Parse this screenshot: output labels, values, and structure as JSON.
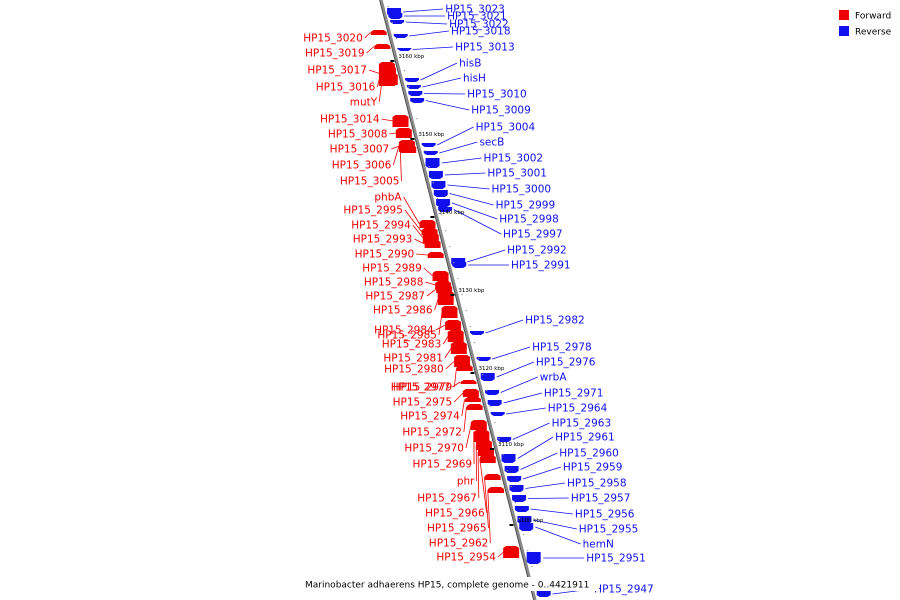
{
  "legend": {
    "forward_label": "Forward",
    "reverse_label": "Reverse",
    "forward_color": "#ee0000",
    "reverse_color": "#1111ee"
  },
  "caption": "Marinobacter adhaerens HP15, complete genome - 0..4421911",
  "ticks": [
    "3160 kbp",
    "3150 kbp",
    "3140 kbp",
    "3130 kbp",
    "3120 kbp",
    "3110 kbp",
    "3100 kbp"
  ],
  "reverse_genes": [
    "HP15_3023",
    "HP15_3022",
    "HP15_3021",
    "HP15_3018",
    "HP15_3013",
    "hisB",
    "hisH",
    "HP15_3010",
    "HP15_3009",
    "HP15_3004",
    "secB",
    "HP15_3002",
    "HP15_3001",
    "HP15_3000",
    "HP15_2999",
    "HP15_2998",
    "HP15_2997",
    "HP15_2992",
    "HP15_2991",
    "HP15_2982",
    "HP15_2978",
    "HP15_2976",
    "wrbA",
    "HP15_2971",
    "HP15_2964",
    "HP15_2963",
    "HP15_2961",
    "HP15_2960",
    "HP15_2959",
    "HP15_2958",
    "HP15_2957",
    "HP15_2956",
    "HP15_2955",
    "hemN",
    "HP15_2951",
    "HP15_2947"
  ],
  "forward_genes": [
    "HP15_3020",
    "HP15_3019",
    "HP15_3017",
    "HP15_3016",
    "mutY",
    "HP15_3014",
    "HP15_3008",
    "HP15_3007",
    "HP15_3006",
    "HP15_3005",
    "phbA",
    "HP15_2995",
    "HP15_2994",
    "HP15_2993",
    "HP15_2990",
    "HP15_2989",
    "HP15_2988",
    "HP15_2987",
    "HP15_2986",
    "HP15_2985",
    "HP15_2984",
    "HP15_2983",
    "HP15_2981",
    "HP15_2980",
    "HP15_2979",
    "HP15_2977",
    "HP15_2975",
    "HP15_2974",
    "HP15_2972",
    "HP15_2970",
    "HP15_2969",
    "phr",
    "HP15_2967",
    "HP15_2966",
    "HP15_2965",
    "HP15_2962",
    "HP15_2954"
  ]
}
